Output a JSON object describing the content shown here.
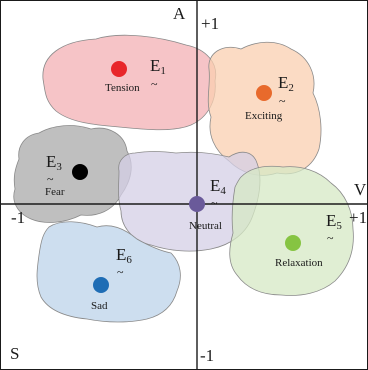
{
  "axes": {
    "arousal_label": "A",
    "valence_label": "V",
    "corner_label": "S",
    "arousal_max": "+1",
    "arousal_min": "-1",
    "valence_max": "+1",
    "valence_min": "-1"
  },
  "emotions": [
    {
      "symbol": "E",
      "index": "1",
      "name": "Tension",
      "color": "#e8262a",
      "region_color": "#f3b0b4"
    },
    {
      "symbol": "E",
      "index": "2",
      "name": "Exciting",
      "color": "#e86a2c",
      "region_color": "#f9cfb0"
    },
    {
      "symbol": "E",
      "index": "3",
      "name": "Fear",
      "color": "#000000",
      "region_color": "#a9a9a9"
    },
    {
      "symbol": "E",
      "index": "4",
      "name": "Neutral",
      "color": "#6a5a9a",
      "region_color": "#d4cfe6"
    },
    {
      "symbol": "E",
      "index": "5",
      "name": "Relaxation",
      "color": "#86c442",
      "region_color": "#d6e8c4"
    },
    {
      "symbol": "E",
      "index": "6",
      "name": "Sad",
      "color": "#1f6db5",
      "region_color": "#bcd3ea"
    }
  ],
  "tilde": "~"
}
